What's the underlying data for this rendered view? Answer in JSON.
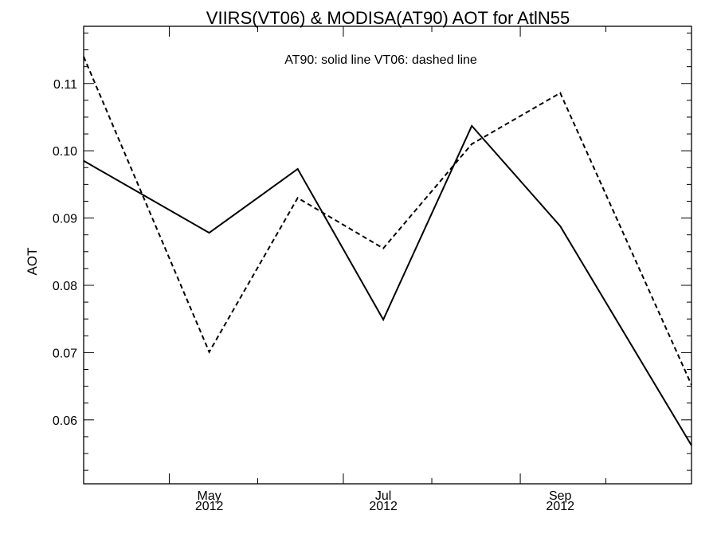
{
  "chart_data": {
    "type": "line",
    "title": "VIIRS(VT06) & MODISA(AT90)  AOT for AtlN55",
    "annotation": "AT90: solid line   VT06: dashed line",
    "xlabel": "",
    "ylabel": "AOT",
    "xlim": [
      "2012-04-01",
      "2012-10-31"
    ],
    "ylim": [
      0.0505,
      0.1185
    ],
    "x": [
      "2012-04-01",
      "2012-05-15",
      "2012-06-15",
      "2012-07-15",
      "2012-08-15",
      "2012-09-15",
      "2012-10-31"
    ],
    "series": [
      {
        "name": "AT90",
        "style": "solid",
        "color": "#000000",
        "values": [
          0.0985,
          0.0878,
          0.0973,
          0.0749,
          0.1037,
          0.0888,
          0.0562
        ]
      },
      {
        "name": "VT06",
        "style": "dashed",
        "color": "#000000",
        "values": [
          0.114,
          0.0701,
          0.093,
          0.0855,
          0.101,
          0.1086,
          0.0652
        ]
      }
    ],
    "y_ticks": [
      "0.06",
      "0.07",
      "0.08",
      "0.09",
      "0.10",
      "0.11"
    ],
    "x_ticks": [
      {
        "month": "May",
        "year": "2012"
      },
      {
        "month": "Jul",
        "year": "2012"
      },
      {
        "month": "Sep",
        "year": "2012"
      }
    ],
    "grid": false,
    "legend": "top-center"
  }
}
